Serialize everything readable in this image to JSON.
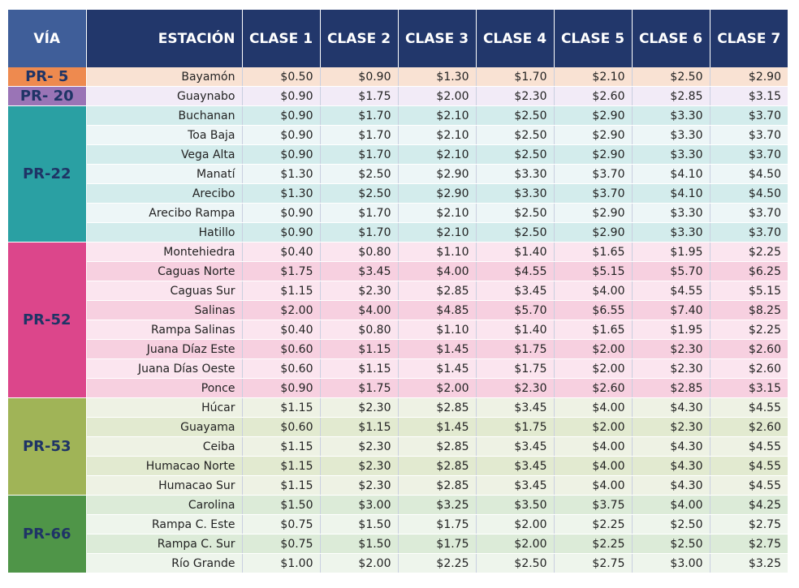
{
  "header": {
    "via": "VÍA",
    "estacion": "ESTACIÓN",
    "clases": [
      "CLASE 1",
      "CLASE 2",
      "CLASE 3",
      "CLASE 4",
      "CLASE 5",
      "CLASE 6",
      "CLASE 7"
    ]
  },
  "colors": {
    "header_bg": "#22376b",
    "via_header_bg": "#3f5e99",
    "text_dark": "#1f3466"
  },
  "groups": [
    {
      "via": "PR- 5",
      "color": "#ee8a4f",
      "tints": [
        "#f9e2d3",
        "#f9e2d3"
      ],
      "rows": [
        {
          "estacion": "Bayamón",
          "values": [
            "$0.50",
            "$0.90",
            "$1.30",
            "$1.70",
            "$2.10",
            "$2.50",
            "$2.90"
          ]
        }
      ]
    },
    {
      "via": "PR- 20",
      "color": "#9a74b6",
      "tints": [
        "#f2ebf7",
        "#f2ebf7"
      ],
      "rows": [
        {
          "estacion": "Guaynabo",
          "values": [
            "$0.90",
            "$1.75",
            "$2.00",
            "$2.30",
            "$2.60",
            "$2.85",
            "$3.15"
          ]
        }
      ]
    },
    {
      "via": "PR-22",
      "color": "#2aa0a3",
      "tints": [
        "#d3ecec",
        "#edf6f7"
      ],
      "rows": [
        {
          "estacion": "Buchanan",
          "values": [
            "$0.90",
            "$1.70",
            "$2.10",
            "$2.50",
            "$2.90",
            "$3.30",
            "$3.70"
          ]
        },
        {
          "estacion": "Toa Baja",
          "values": [
            "$0.90",
            "$1.70",
            "$2.10",
            "$2.50",
            "$2.90",
            "$3.30",
            "$3.70"
          ]
        },
        {
          "estacion": "Vega Alta",
          "values": [
            "$0.90",
            "$1.70",
            "$2.10",
            "$2.50",
            "$2.90",
            "$3.30",
            "$3.70"
          ]
        },
        {
          "estacion": "Manatí",
          "values": [
            "$1.30",
            "$2.50",
            "$2.90",
            "$3.30",
            "$3.70",
            "$4.10",
            "$4.50"
          ]
        },
        {
          "estacion": "Arecibo",
          "values": [
            "$1.30",
            "$2.50",
            "$2.90",
            "$3.30",
            "$3.70",
            "$4.10",
            "$4.50"
          ]
        },
        {
          "estacion": "Arecibo Rampa",
          "values": [
            "$0.90",
            "$1.70",
            "$2.10",
            "$2.50",
            "$2.90",
            "$3.30",
            "$3.70"
          ]
        },
        {
          "estacion": "Hatillo",
          "values": [
            "$0.90",
            "$1.70",
            "$2.10",
            "$2.50",
            "$2.90",
            "$3.30",
            "$3.70"
          ]
        }
      ]
    },
    {
      "via": "PR-52",
      "color": "#dc468b",
      "tints": [
        "#fbe5ef",
        "#f7d0e0"
      ],
      "rows": [
        {
          "estacion": "Montehiedra",
          "values": [
            "$0.40",
            "$0.80",
            "$1.10",
            "$1.40",
            "$1.65",
            "$1.95",
            "$2.25"
          ]
        },
        {
          "estacion": "Caguas Norte",
          "values": [
            "$1.75",
            "$3.45",
            "$4.00",
            "$4.55",
            "$5.15",
            "$5.70",
            "$6.25"
          ]
        },
        {
          "estacion": "Caguas Sur",
          "values": [
            "$1.15",
            "$2.30",
            "$2.85",
            "$3.45",
            "$4.00",
            "$4.55",
            "$5.15"
          ]
        },
        {
          "estacion": "Salinas",
          "values": [
            "$2.00",
            "$4.00",
            "$4.85",
            "$5.70",
            "$6.55",
            "$7.40",
            "$8.25"
          ]
        },
        {
          "estacion": "Rampa Salinas",
          "values": [
            "$0.40",
            "$0.80",
            "$1.10",
            "$1.40",
            "$1.65",
            "$1.95",
            "$2.25"
          ]
        },
        {
          "estacion": "Juana Díaz Este",
          "values": [
            "$0.60",
            "$1.15",
            "$1.45",
            "$1.75",
            "$2.00",
            "$2.30",
            "$2.60"
          ]
        },
        {
          "estacion": "Juana Días Oeste",
          "values": [
            "$0.60",
            "$1.15",
            "$1.45",
            "$1.75",
            "$2.00",
            "$2.30",
            "$2.60"
          ]
        },
        {
          "estacion": "Ponce",
          "values": [
            "$0.90",
            "$1.75",
            "$2.00",
            "$2.30",
            "$2.60",
            "$2.85",
            "$3.15"
          ]
        }
      ]
    },
    {
      "via": "PR-53",
      "color": "#a0b457",
      "tints": [
        "#eef2e4",
        "#e2ead0"
      ],
      "rows": [
        {
          "estacion": "Húcar",
          "values": [
            "$1.15",
            "$2.30",
            "$2.85",
            "$3.45",
            "$4.00",
            "$4.30",
            "$4.55"
          ]
        },
        {
          "estacion": "Guayama",
          "values": [
            "$0.60",
            "$1.15",
            "$1.45",
            "$1.75",
            "$2.00",
            "$2.30",
            "$2.60"
          ]
        },
        {
          "estacion": "Ceiba",
          "values": [
            "$1.15",
            "$2.30",
            "$2.85",
            "$3.45",
            "$4.00",
            "$4.30",
            "$4.55"
          ]
        },
        {
          "estacion": "Humacao Norte",
          "values": [
            "$1.15",
            "$2.30",
            "$2.85",
            "$3.45",
            "$4.00",
            "$4.30",
            "$4.55"
          ]
        },
        {
          "estacion": "Humacao Sur",
          "values": [
            "$1.15",
            "$2.30",
            "$2.85",
            "$3.45",
            "$4.00",
            "$4.30",
            "$4.55"
          ]
        }
      ]
    },
    {
      "via": "PR-66",
      "color": "#4f9548",
      "tints": [
        "#dcebd8",
        "#eef5ec"
      ],
      "rows": [
        {
          "estacion": "Carolina",
          "values": [
            "$1.50",
            "$3.00",
            "$3.25",
            "$3.50",
            "$3.75",
            "$4.00",
            "$4.25"
          ]
        },
        {
          "estacion": "Rampa C. Este",
          "values": [
            "$0.75",
            "$1.50",
            "$1.75",
            "$2.00",
            "$2.25",
            "$2.50",
            "$2.75"
          ]
        },
        {
          "estacion": "Rampa C. Sur",
          "values": [
            "$0.75",
            "$1.50",
            "$1.75",
            "$2.00",
            "$2.25",
            "$2.50",
            "$2.75"
          ]
        },
        {
          "estacion": "Río Grande",
          "values": [
            "$1.00",
            "$2.00",
            "$2.25",
            "$2.50",
            "$2.75",
            "$3.00",
            "$3.25"
          ]
        }
      ]
    }
  ]
}
